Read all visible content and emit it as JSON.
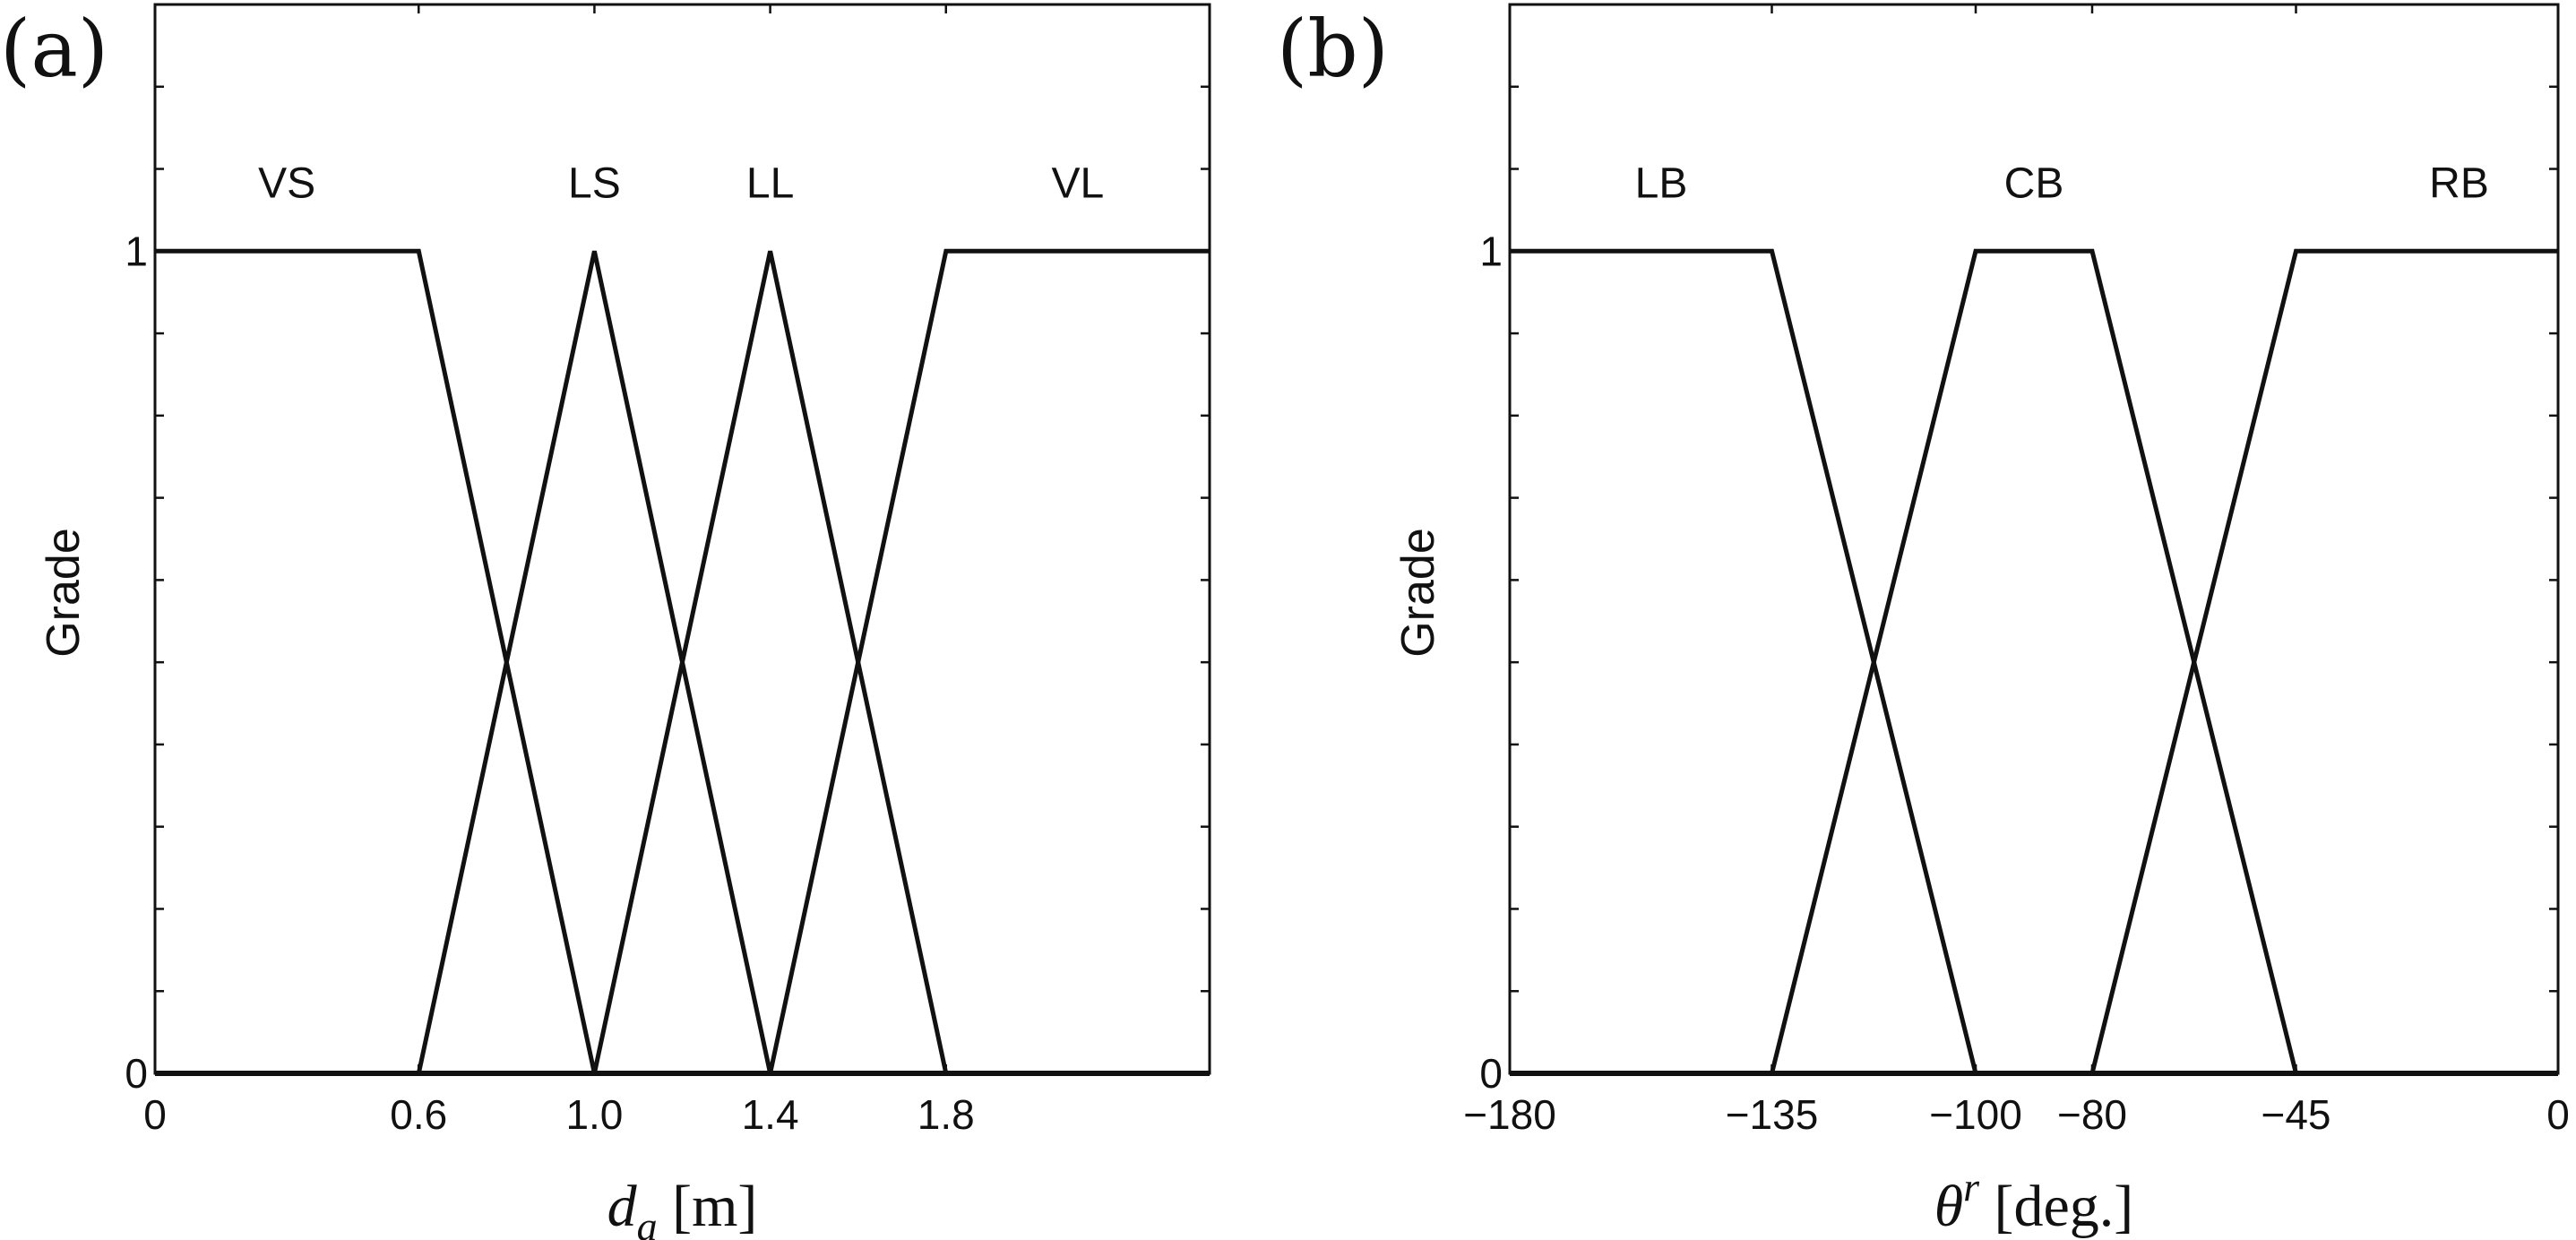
{
  "chart_data": [
    {
      "type": "line",
      "panel": "(a)",
      "xlabel": {
        "symbol": "d",
        "subscript": "a",
        "unit": "[m]"
      },
      "ylabel": "Grade",
      "xlim": [
        0,
        2.4
      ],
      "ylim": [
        0,
        1.3
      ],
      "xticks": [
        0,
        0.6,
        1.0,
        1.4,
        1.8
      ],
      "xtick_labels": [
        "0",
        "0.6",
        "1.0",
        "1.4",
        "1.8"
      ],
      "yticks": [
        0,
        1
      ],
      "ytick_labels": [
        "0",
        "1"
      ],
      "series": [
        {
          "name": "VS",
          "label_x": 0.3,
          "points": [
            [
              0,
              1
            ],
            [
              0.6,
              1
            ],
            [
              1.0,
              0
            ],
            [
              2.4,
              0
            ]
          ]
        },
        {
          "name": "LS",
          "label_x": 1.0,
          "points": [
            [
              0,
              0
            ],
            [
              0.6,
              0
            ],
            [
              1.0,
              1
            ],
            [
              1.4,
              0
            ],
            [
              2.4,
              0
            ]
          ]
        },
        {
          "name": "LL",
          "label_x": 1.4,
          "points": [
            [
              0,
              0
            ],
            [
              1.0,
              0
            ],
            [
              1.4,
              1
            ],
            [
              1.8,
              0
            ],
            [
              2.4,
              0
            ]
          ]
        },
        {
          "name": "VL",
          "label_x": 2.1,
          "points": [
            [
              0,
              0
            ],
            [
              1.4,
              0
            ],
            [
              1.8,
              1
            ],
            [
              2.4,
              1
            ]
          ]
        }
      ]
    },
    {
      "type": "line",
      "panel": "(b)",
      "xlabel": {
        "symbol": "θ",
        "superscript": "r",
        "unit": "[deg.]"
      },
      "ylabel": "Grade",
      "xlim": [
        -180,
        0
      ],
      "ylim": [
        0,
        1.3
      ],
      "xticks": [
        -180,
        -135,
        -100,
        -80,
        -45,
        0
      ],
      "xtick_labels": [
        "−180",
        "−135",
        "−100",
        "−80",
        "−45",
        "0"
      ],
      "yticks": [
        0,
        1
      ],
      "ytick_labels": [
        "0",
        "1"
      ],
      "series": [
        {
          "name": "LB",
          "label_x": -154,
          "points": [
            [
              -180,
              1
            ],
            [
              -135,
              1
            ],
            [
              -100,
              0
            ],
            [
              0,
              0
            ]
          ]
        },
        {
          "name": "CB",
          "label_x": -90,
          "points": [
            [
              -180,
              0
            ],
            [
              -135,
              0
            ],
            [
              -100,
              1
            ],
            [
              -80,
              1
            ],
            [
              -45,
              0
            ],
            [
              0,
              0
            ]
          ]
        },
        {
          "name": "RB",
          "label_x": -17,
          "points": [
            [
              -180,
              0
            ],
            [
              -80,
              0
            ],
            [
              -45,
              1
            ],
            [
              0,
              1
            ]
          ]
        }
      ]
    }
  ]
}
